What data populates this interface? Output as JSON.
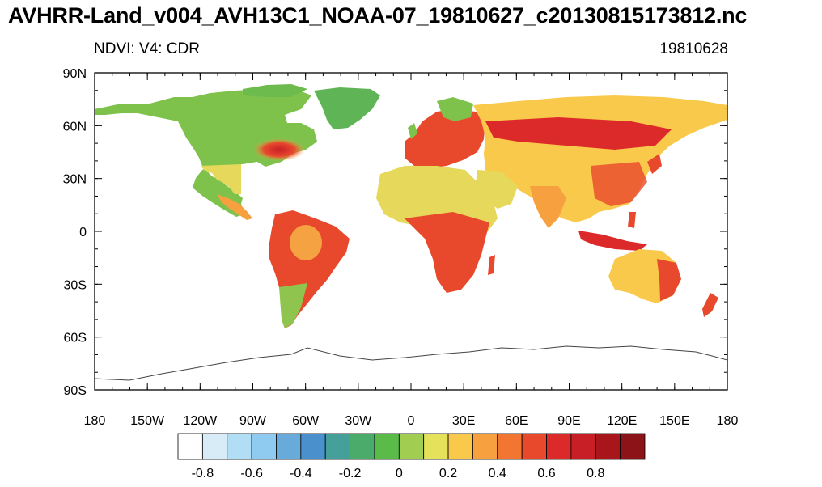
{
  "header": {
    "title": "AVHRR-Land_v004_AVH13C1_NOAA-07_19810627_c20130815173812.nc",
    "variable_label": "NDVI: V4: CDR",
    "date_label": "19810628"
  },
  "map": {
    "projection": "cylindrical equidistant",
    "lat_labels": [
      "90N",
      "60N",
      "30N",
      "0",
      "30S",
      "60S",
      "90S"
    ],
    "lon_labels": [
      "180",
      "150W",
      "120W",
      "90W",
      "60W",
      "30W",
      "0",
      "30E",
      "60E",
      "90E",
      "120E",
      "150E",
      "180"
    ]
  },
  "colorbar": {
    "colors": [
      "#ffffff",
      "#d7ecf7",
      "#b2def5",
      "#8fcbf0",
      "#68abdb",
      "#4a90cd",
      "#46a09a",
      "#4aab6a",
      "#5bbb48",
      "#a1cd50",
      "#e6e15a",
      "#f9c94b",
      "#f7a040",
      "#f27532",
      "#e8492d",
      "#dc2a2a",
      "#c81f27",
      "#a8161c",
      "#8c1419"
    ],
    "labels": [
      "-0.8",
      "-0.6",
      "-0.4",
      "-0.2",
      "0",
      "0.2",
      "0.4",
      "0.6",
      "0.8"
    ]
  }
}
